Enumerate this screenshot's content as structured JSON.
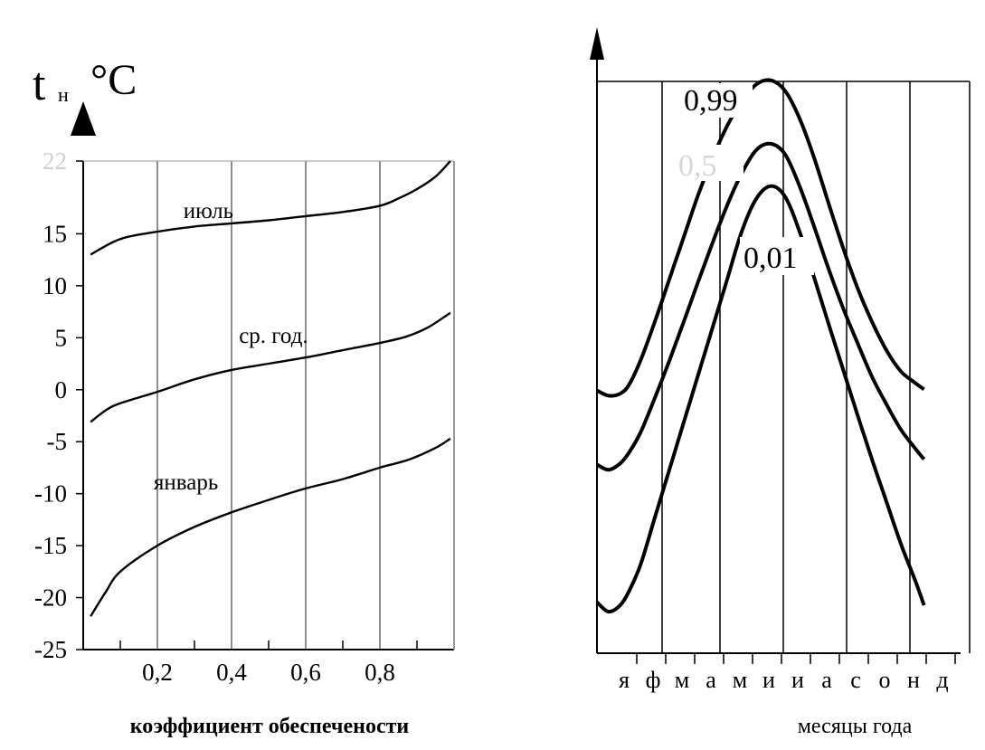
{
  "chart_data": [
    {
      "type": "line",
      "ylabel": "t",
      "ylabel_sub": "н",
      "ylabel_unit": "°C",
      "xlabel": "коэффициент обеспечености",
      "xlim": [
        0,
        1
      ],
      "ylim": [
        -25,
        22
      ],
      "x_ticks": [
        {
          "value": 0.2,
          "label": "0,2"
        },
        {
          "value": 0.4,
          "label": "0,4"
        },
        {
          "value": 0.6,
          "label": "0,6"
        },
        {
          "value": 0.8,
          "label": "0,8"
        }
      ],
      "y_ticks": [
        {
          "value": 22,
          "label": "22"
        },
        {
          "value": 15,
          "label": "15"
        },
        {
          "value": 10,
          "label": "10"
        },
        {
          "value": 5,
          "label": "5"
        },
        {
          "value": 0,
          "label": "0"
        },
        {
          "value": -5,
          "label": "-5"
        },
        {
          "value": -10,
          "label": "-10"
        },
        {
          "value": -15,
          "label": "-15"
        },
        {
          "value": -20,
          "label": "-20"
        },
        {
          "value": -25,
          "label": "-25"
        }
      ],
      "grid_x": [
        0.2,
        0.4,
        0.6,
        0.8
      ],
      "series": [
        {
          "name": "июль",
          "label_at": {
            "x": 0.27,
            "y": 16.5
          },
          "x": [
            0.02,
            0.1,
            0.2,
            0.3,
            0.4,
            0.5,
            0.6,
            0.7,
            0.8,
            0.85,
            0.9,
            0.95,
            0.99
          ],
          "y": [
            13.0,
            14.5,
            15.2,
            15.7,
            16.0,
            16.3,
            16.7,
            17.1,
            17.7,
            18.4,
            19.3,
            20.5,
            22.0
          ]
        },
        {
          "name": "ср. год.",
          "label_at": {
            "x": 0.42,
            "y": 4.5
          },
          "x": [
            0.02,
            0.06,
            0.1,
            0.2,
            0.3,
            0.4,
            0.5,
            0.6,
            0.7,
            0.8,
            0.87,
            0.93,
            0.99
          ],
          "y": [
            -3.1,
            -2.0,
            -1.3,
            -0.2,
            1.0,
            1.9,
            2.5,
            3.1,
            3.8,
            4.5,
            5.1,
            6.0,
            7.4
          ]
        },
        {
          "name": "январь",
          "label_at": {
            "x": 0.19,
            "y": -9.6
          },
          "x": [
            0.02,
            0.06,
            0.1,
            0.2,
            0.3,
            0.4,
            0.5,
            0.6,
            0.7,
            0.8,
            0.88,
            0.95,
            0.99
          ],
          "y": [
            -21.8,
            -19.5,
            -17.5,
            -15.0,
            -13.2,
            -11.8,
            -10.6,
            -9.5,
            -8.6,
            -7.5,
            -6.7,
            -5.6,
            -4.7
          ]
        }
      ]
    },
    {
      "type": "line",
      "xlabel": "месяцы года",
      "categories": [
        "я",
        "ф",
        "м",
        "а",
        "м",
        "и",
        "и",
        "а",
        "с",
        "о",
        "н",
        "д"
      ],
      "series": [
        {
          "name": "0,99",
          "x": [
            0.0,
            0.4,
            0.8,
            1.1,
            1.5,
            2.0,
            2.5,
            3.0,
            3.5,
            4.0,
            4.5,
            5.0,
            5.5,
            6.0,
            6.5,
            7.0,
            7.5,
            8.0,
            8.5,
            9.0,
            9.5,
            10.0,
            10.5,
            11.0,
            11.3
          ],
          "y": [
            -1.5,
            -2.0,
            -1.8,
            -1.0,
            1.3,
            5.0,
            9.0,
            13.0,
            17.0,
            20.5,
            23.5,
            25.8,
            27.4,
            27.8,
            26.8,
            24.2,
            20.5,
            16.2,
            12.0,
            8.2,
            5.0,
            2.3,
            0.3,
            -0.8,
            -1.4
          ]
        },
        {
          "name": "0,5",
          "x": [
            0.0,
            0.4,
            0.8,
            1.1,
            1.5,
            2.0,
            2.5,
            3.0,
            3.5,
            4.0,
            4.5,
            5.0,
            5.5,
            6.0,
            6.5,
            7.0,
            7.5,
            8.0,
            8.5,
            9.0,
            9.5,
            10.0,
            10.5,
            11.0,
            11.3
          ],
          "y": [
            -8.5,
            -9.0,
            -8.4,
            -7.4,
            -5.5,
            -2.2,
            1.3,
            5.0,
            8.8,
            12.5,
            16.0,
            19.0,
            21.2,
            21.8,
            20.8,
            17.8,
            14.0,
            10.0,
            6.3,
            3.0,
            -0.2,
            -2.8,
            -5.2,
            -7.0,
            -8.0
          ]
        },
        {
          "name": "0,01",
          "x": [
            0.0,
            0.4,
            0.8,
            1.1,
            1.5,
            2.0,
            2.5,
            3.0,
            3.5,
            4.0,
            4.5,
            5.0,
            5.5,
            6.0,
            6.5,
            7.0,
            7.5,
            8.0,
            8.5,
            9.0,
            9.5,
            10.0,
            10.5,
            11.0,
            11.3
          ],
          "y": [
            -21.5,
            -22.4,
            -21.8,
            -20.5,
            -18.0,
            -13.5,
            -9.0,
            -4.5,
            0.0,
            4.5,
            9.0,
            13.5,
            16.6,
            17.8,
            16.8,
            13.5,
            9.2,
            4.8,
            0.5,
            -3.8,
            -8.0,
            -12.0,
            -16.0,
            -19.5,
            -21.8
          ]
        }
      ]
    }
  ]
}
